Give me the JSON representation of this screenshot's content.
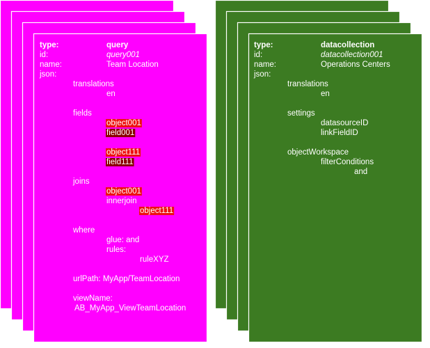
{
  "cards": [
    {
      "fields": [
        {
          "label": "type:",
          "value": "query"
        },
        {
          "label": "id:",
          "value": "query001"
        },
        {
          "label": "name:",
          "value": "Team Location"
        },
        {
          "label": "json:"
        }
      ],
      "json": [
        "translations",
        "en",
        "fields",
        "object001",
        "field001",
        "object111",
        "field111",
        "joins",
        "object001",
        "innerjoin",
        "object111",
        "where",
        "glue: and",
        "rules:",
        "ruleXYZ",
        "urlPath: MyApp/TeamLocation",
        "viewName:",
        "AB_MyApp_ViewTeamLocation"
      ]
    },
    {
      "fields": [
        {
          "label": "type:",
          "value": "datacollection"
        },
        {
          "label": "id:",
          "value": "datacollection001"
        },
        {
          "label": "name:",
          "value": "Operations Centers"
        },
        {
          "label": "json:"
        }
      ],
      "json": [
        "translations",
        "en",
        "settings",
        "datasourceID",
        "linkFieldID",
        "objectWorkspace",
        "filterConditions",
        "and"
      ]
    }
  ]
}
